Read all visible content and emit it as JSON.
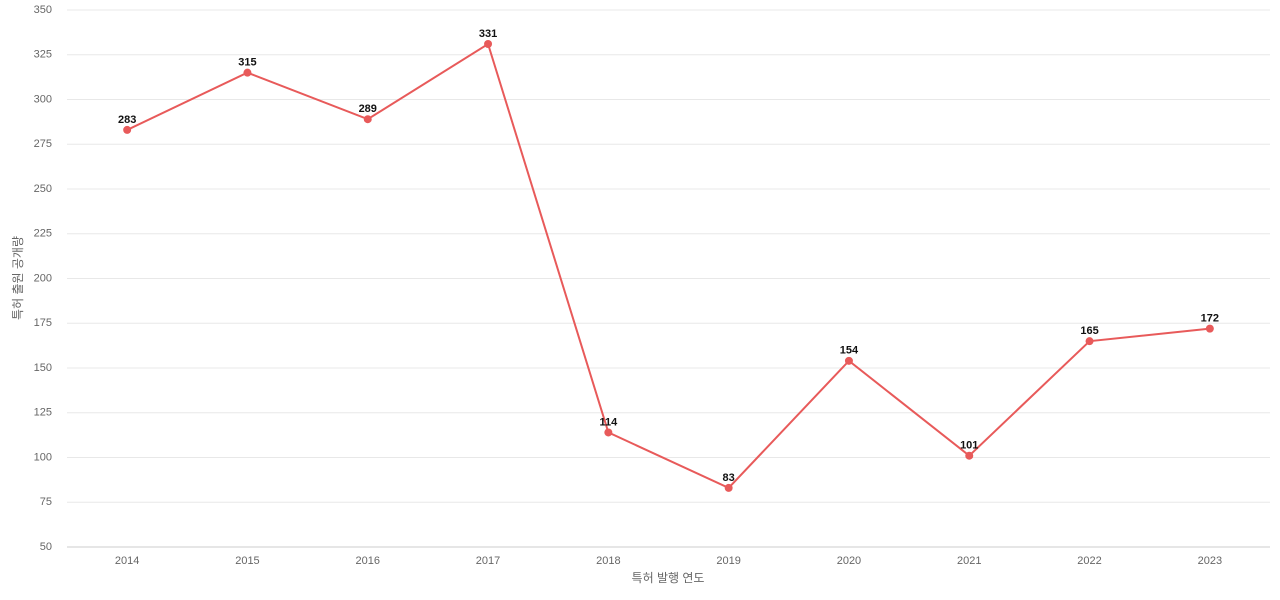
{
  "chart_data": {
    "type": "line",
    "x_label": "특허 발행 연도",
    "y_label": "특허 출원 공개량",
    "categories": [
      "2014",
      "2015",
      "2016",
      "2017",
      "2018",
      "2019",
      "2020",
      "2021",
      "2022",
      "2023"
    ],
    "series": [
      {
        "name": "특허 출원 공개량",
        "color": "#e85a5a",
        "values": [
          283,
          315,
          289,
          331,
          114,
          83,
          154,
          101,
          165,
          172
        ]
      }
    ],
    "ylim": [
      50,
      350
    ],
    "yticks": [
      50,
      75,
      100,
      125,
      150,
      175,
      200,
      225,
      250,
      275,
      300,
      325,
      350
    ],
    "grid": true
  }
}
